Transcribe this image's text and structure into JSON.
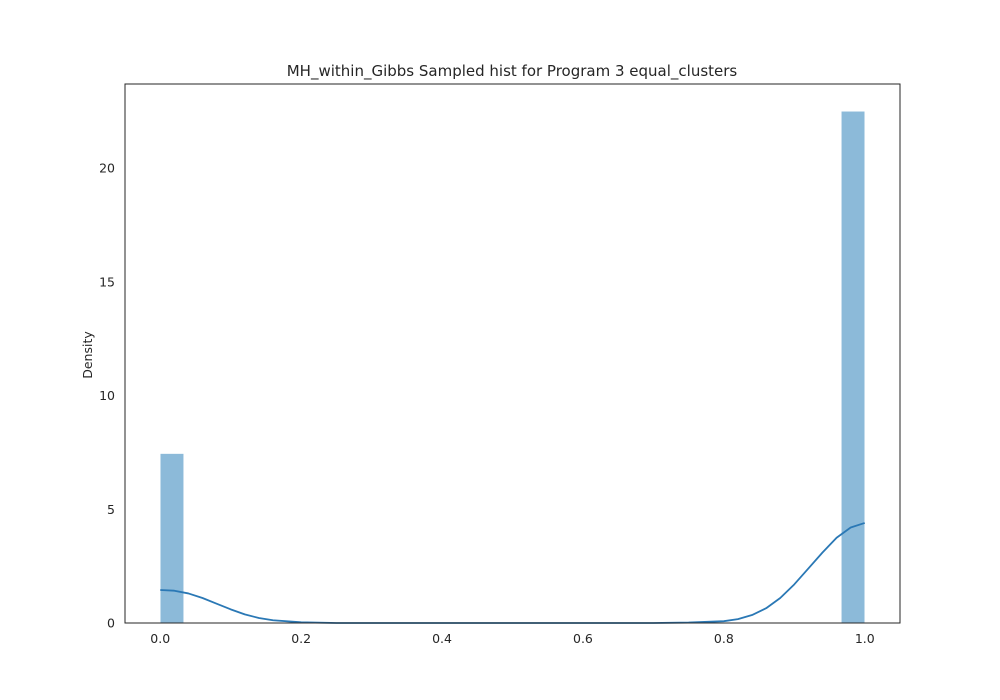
{
  "chart_data": {
    "type": "bar",
    "subtype": "histogram-with-kde",
    "title": "MH_within_Gibbs Sampled hist for Program 3 equal_clusters",
    "xlabel": "",
    "ylabel": "Density",
    "xlim": [
      -0.05,
      1.05
    ],
    "ylim": [
      0,
      23.7
    ],
    "xticks": [
      0.0,
      0.2,
      0.4,
      0.6,
      0.8,
      1.0
    ],
    "xtick_labels": [
      "0.0",
      "0.2",
      "0.4",
      "0.6",
      "0.8",
      "1.0"
    ],
    "yticks": [
      0,
      5,
      10,
      15,
      20
    ],
    "ytick_labels": [
      "0",
      "5",
      "10",
      "15",
      "20"
    ],
    "grid": false,
    "bar_color": "#8cbad9",
    "line_color": "#2a78b5",
    "bins": [
      {
        "x0": 0.0,
        "x1": 0.0333,
        "density": 7.45
      },
      {
        "x0": 0.9667,
        "x1": 1.0,
        "density": 22.5
      }
    ],
    "kde": {
      "x": [
        0.0,
        0.02,
        0.04,
        0.06,
        0.08,
        0.1,
        0.12,
        0.14,
        0.16,
        0.2,
        0.25,
        0.3,
        0.4,
        0.5,
        0.6,
        0.7,
        0.75,
        0.8,
        0.82,
        0.84,
        0.86,
        0.88,
        0.9,
        0.92,
        0.94,
        0.96,
        0.98,
        1.0
      ],
      "y": [
        1.45,
        1.42,
        1.3,
        1.1,
        0.85,
        0.6,
        0.38,
        0.22,
        0.12,
        0.03,
        0.0,
        0.0,
        0.0,
        0.0,
        0.0,
        0.0,
        0.02,
        0.08,
        0.17,
        0.35,
        0.65,
        1.1,
        1.7,
        2.4,
        3.1,
        3.75,
        4.2,
        4.4
      ]
    }
  }
}
